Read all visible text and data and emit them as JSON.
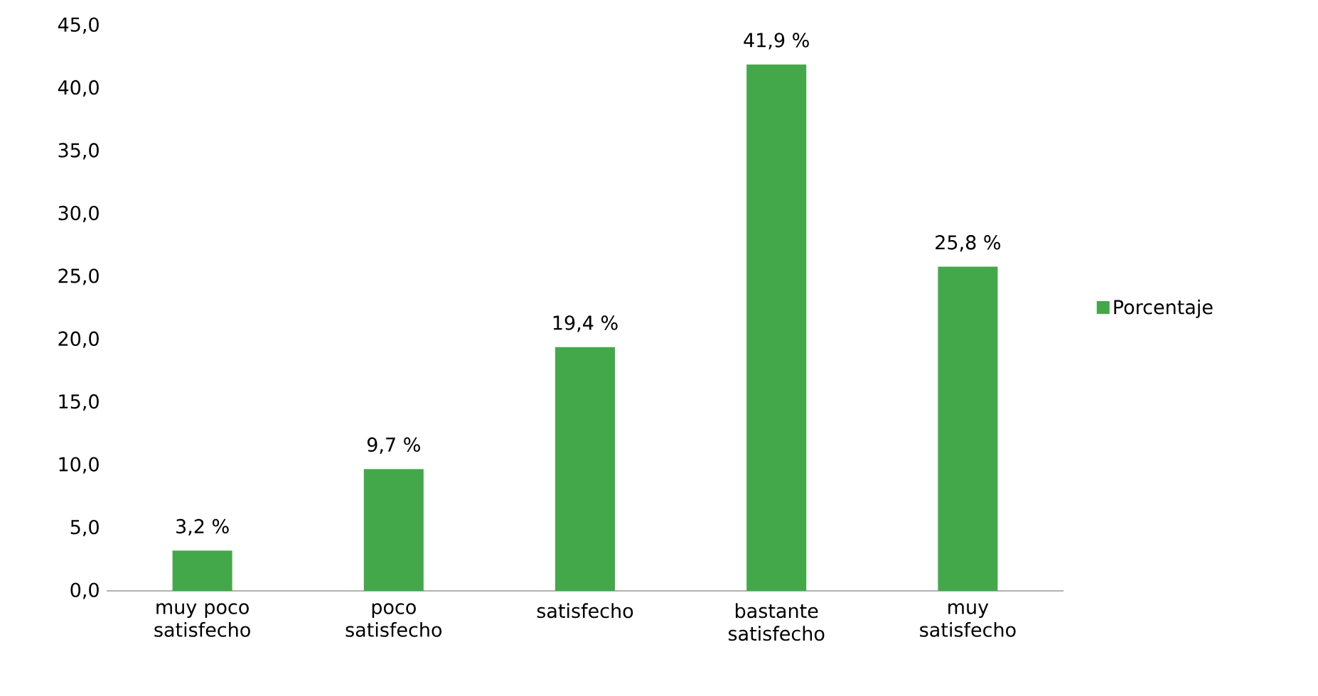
{
  "chart_data": {
    "type": "bar",
    "categories": [
      "muy poco satisfecho",
      "poco satisfecho",
      "satisfecho",
      "bastante satisfecho",
      "muy satisfecho"
    ],
    "series": [
      {
        "name": "Porcentaje",
        "color": "#43a84a",
        "values": [
          3.2,
          9.7,
          19.4,
          41.9,
          25.8
        ],
        "value_labels": [
          "3,2 %",
          "9,7 %",
          "19,4 %",
          "41,9 %",
          "25,8 %"
        ]
      }
    ],
    "ylim": [
      0,
      45
    ],
    "yticks": [
      {
        "value": 0,
        "label": "0,0"
      },
      {
        "value": 5,
        "label": "5,0"
      },
      {
        "value": 10,
        "label": "10,0"
      },
      {
        "value": 15,
        "label": "15,0"
      },
      {
        "value": 20,
        "label": "20,0"
      },
      {
        "value": 25,
        "label": "25,0"
      },
      {
        "value": 30,
        "label": "30,0"
      },
      {
        "value": 35,
        "label": "35,0"
      },
      {
        "value": 40,
        "label": "40,0"
      },
      {
        "value": 45,
        "label": "45,0"
      }
    ],
    "grid": false,
    "legend": "right"
  }
}
